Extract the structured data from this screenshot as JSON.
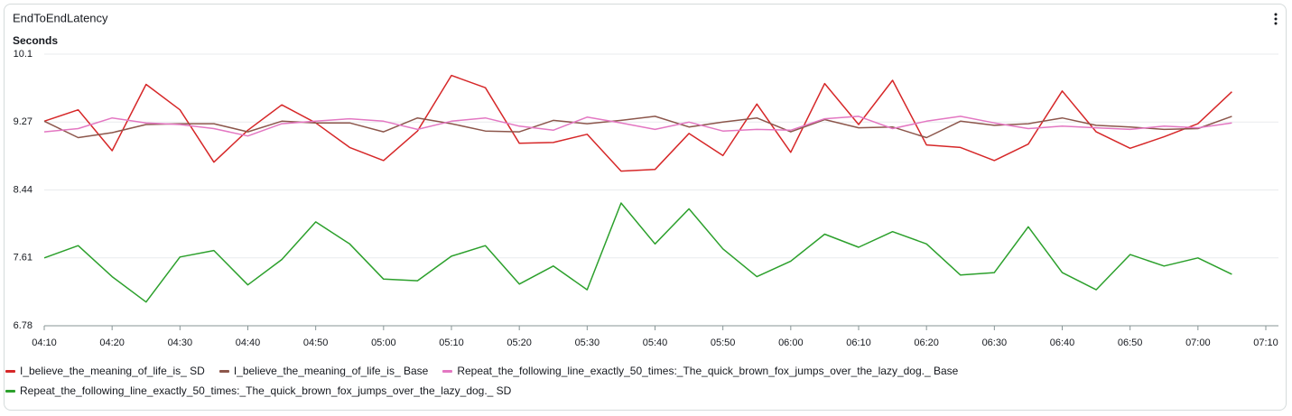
{
  "chart_data": {
    "type": "line",
    "title": "EndToEndLatency",
    "y_label": "Seconds",
    "x": [
      "04:10",
      "04:15",
      "04:20",
      "04:25",
      "04:30",
      "04:35",
      "04:40",
      "04:45",
      "04:50",
      "04:55",
      "05:00",
      "05:05",
      "05:10",
      "05:15",
      "05:20",
      "05:25",
      "05:30",
      "05:35",
      "05:40",
      "05:45",
      "05:50",
      "05:55",
      "06:00",
      "06:05",
      "06:10",
      "06:15",
      "06:20",
      "06:25",
      "06:30",
      "06:35",
      "06:40",
      "06:45",
      "06:50",
      "06:55",
      "07:00",
      "07:05"
    ],
    "xlim": [
      "04:10",
      "07:10"
    ],
    "xticks": [
      "04:10",
      "04:20",
      "04:30",
      "04:40",
      "04:50",
      "05:00",
      "05:10",
      "05:20",
      "05:30",
      "05:40",
      "05:50",
      "06:00",
      "06:10",
      "06:20",
      "06:30",
      "06:40",
      "06:50",
      "07:00",
      "07:10"
    ],
    "ylim": [
      6.78,
      10.1
    ],
    "yticks": [
      6.78,
      7.61,
      8.44,
      9.27,
      10.1
    ],
    "grid": true,
    "series": [
      {
        "name": "I_believe_the_meaning_of_life_is_ SD",
        "color": "#d62728",
        "values": [
          9.28,
          9.42,
          8.92,
          9.73,
          9.42,
          8.78,
          9.17,
          9.48,
          9.26,
          8.96,
          8.8,
          9.16,
          9.84,
          9.69,
          9.01,
          9.02,
          9.12,
          8.67,
          8.69,
          9.13,
          8.86,
          9.49,
          8.9,
          9.74,
          9.24,
          9.78,
          8.99,
          8.96,
          8.8,
          9.0,
          9.65,
          9.15,
          8.95,
          9.09,
          9.25,
          9.64
        ]
      },
      {
        "name": "I_believe_the_meaning_of_life_is_ Base",
        "color": "#8c564b",
        "values": [
          9.28,
          9.08,
          9.14,
          9.24,
          9.25,
          9.25,
          9.15,
          9.28,
          9.26,
          9.26,
          9.15,
          9.32,
          9.25,
          9.16,
          9.15,
          9.29,
          9.25,
          9.29,
          9.34,
          9.21,
          9.27,
          9.32,
          9.15,
          9.3,
          9.2,
          9.21,
          9.08,
          9.28,
          9.23,
          9.25,
          9.32,
          9.23,
          9.21,
          9.18,
          9.19,
          9.34
        ]
      },
      {
        "name": "Repeat_the_following_line_exactly_50_times:_The_quick_brown_fox_jumps_over_the_lazy_dog._ Base",
        "color": "#e377c2",
        "values": [
          9.15,
          9.19,
          9.32,
          9.26,
          9.24,
          9.19,
          9.1,
          9.25,
          9.28,
          9.31,
          9.28,
          9.18,
          9.28,
          9.32,
          9.22,
          9.17,
          9.33,
          9.26,
          9.18,
          9.27,
          9.16,
          9.18,
          9.17,
          9.31,
          9.34,
          9.19,
          9.28,
          9.34,
          9.26,
          9.19,
          9.22,
          9.2,
          9.18,
          9.22,
          9.2,
          9.26
        ]
      },
      {
        "name": "Repeat_the_following_line_exactly_50_times:_The_quick_brown_fox_jumps_over_the_lazy_dog._ SD",
        "color": "#2ca02c",
        "values": [
          7.61,
          7.76,
          7.38,
          7.07,
          7.62,
          7.7,
          7.28,
          7.59,
          8.05,
          7.78,
          7.35,
          7.33,
          7.63,
          7.76,
          7.29,
          7.51,
          7.22,
          8.28,
          7.78,
          8.21,
          7.72,
          7.38,
          7.57,
          7.9,
          7.74,
          7.93,
          7.78,
          7.4,
          7.43,
          7.99,
          7.43,
          7.22,
          7.65,
          7.51,
          7.61,
          7.41
        ]
      }
    ]
  }
}
